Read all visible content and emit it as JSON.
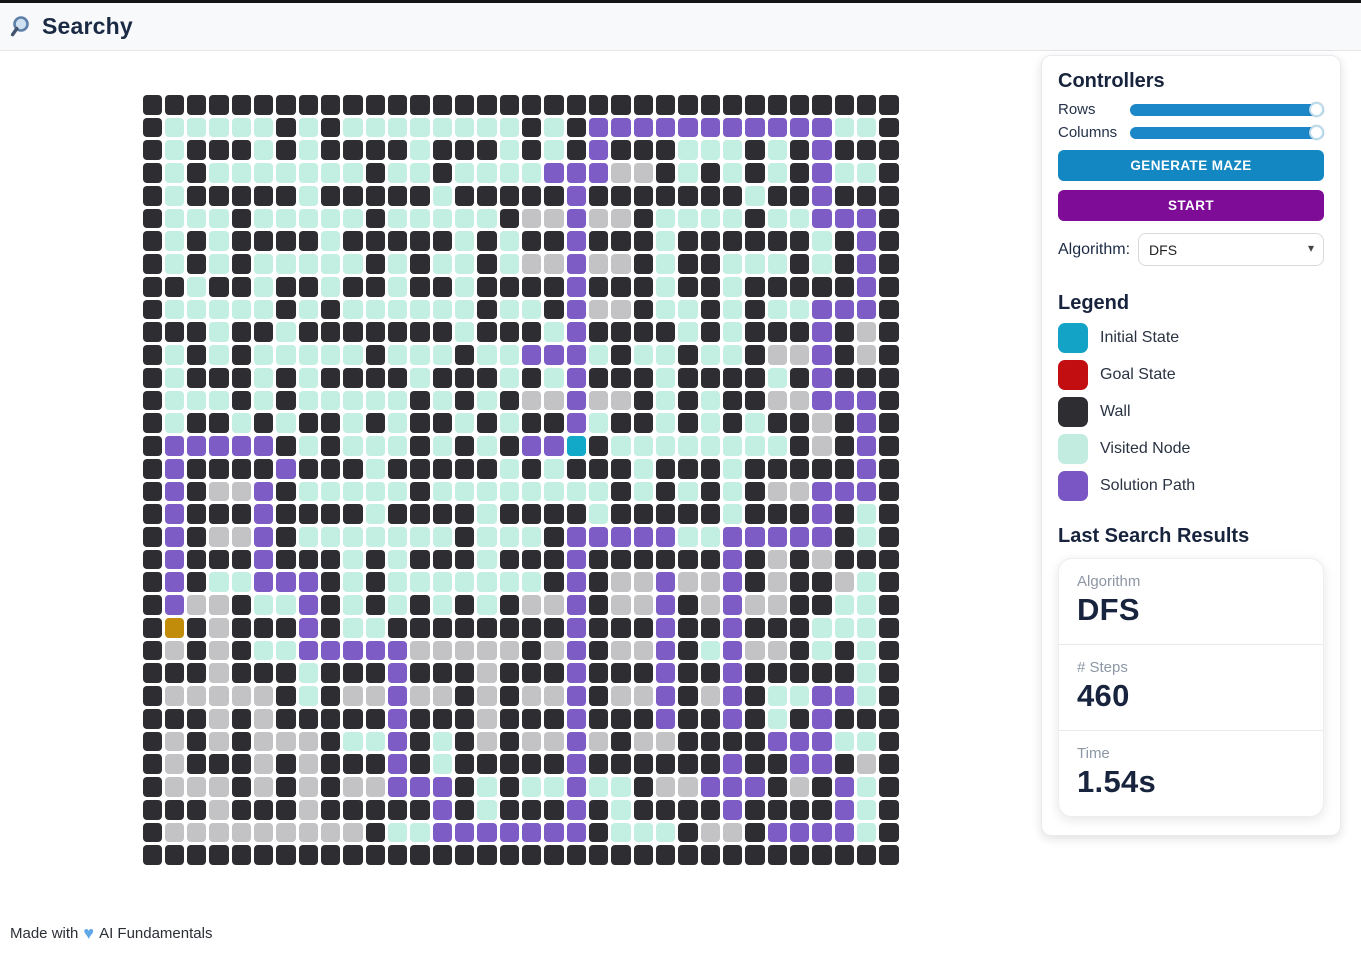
{
  "header": {
    "title": "Searchy",
    "icon": "magnifier"
  },
  "controllers": {
    "title": "Controllers",
    "rows_label": "Rows",
    "columns_label": "Columns",
    "slider_color": "#1b87c9",
    "generate_label": "GENERATE MAZE",
    "start_label": "START",
    "algorithm_label": "Algorithm:",
    "algorithm_value": "DFS"
  },
  "legend": {
    "title": "Legend",
    "items": [
      {
        "label": "Initial State",
        "color": "#12a3c6"
      },
      {
        "label": "Goal State",
        "color": "#c20d11"
      },
      {
        "label": "Wall",
        "color": "#2e2d32"
      },
      {
        "label": "Visited Node",
        "color": "#c2ece0"
      },
      {
        "label": "Solution Path",
        "color": "#7a56c4"
      }
    ]
  },
  "results": {
    "title": "Last Search Results",
    "stats": [
      {
        "label": "Algorithm",
        "value": "DFS"
      },
      {
        "label": "# Steps",
        "value": "460"
      },
      {
        "label": "Time",
        "value": "1.54s"
      }
    ]
  },
  "maze": {
    "rows": 34,
    "cols": 34,
    "cell_colors": {
      "W": "#2e2d32",
      "V": "#c2efe2",
      "U": "#c3c3c5",
      "P": "#7d5cc6",
      "I": "#12a8c8",
      "G": "#c08c0a"
    },
    "cell_names": {
      "W": "wall-cell",
      "V": "visited-cell",
      "U": "free-cell",
      "P": "solution-path-cell",
      "I": "initial-state-cell",
      "G": "goal-state-cell"
    },
    "grid": [
      "WWWWWWWWWWWWWWWWWWWWWWWWWWWWWWWWWW",
      "WVVVVVWVWVVVVVVVVWVWPPPPPPPPPPPVVW",
      "WVWWWVWVWWWWVWWWVWVWPWWWVVVWVWPWWW",
      "WVWVVVVVVVWVVWVVVVPPPUUWVWVWVWPVVW",
      "WVWWWWWVWWWWWVWWWWWPWWWWWWWVWWPWWW",
      "WVVVWVVVVVWVVVVVWUUPUUWVVVVWVVPPPW",
      "WVWVWWWWVWWWWWVWVWWPWWWVWWWWWWVWPW",
      "WVWVWVVVVVWVWVVWVUUPUUWVWWVVVWVWPW",
      "WWVWWVWWVWWVWWVWWWWPWWWVWWVWWWWWPW",
      "WVVVVVWVWVVVVVVWVVWPUUWVVWVWVVPPPW",
      "WWWVWWVWWWWWWWVWWWVPWWWWVWVWWWPWUW",
      "WVWVWVVVVVWVVVWVVPPPVWVVWVVWUUPWUW",
      "WVWWWVWVWWWWVWWWVWVPWWWVWWWWVWPWWW",
      "WVVVWVWVVVVVWVWVWUUPUUWVWVWWUUPPPW",
      "WVWWVWVWWVWVWWVWVWWPVWWVWVWVWWUWPW",
      "WPPPPPWVWVVVWVWVWPPIWVVVVVVVVWUWPW",
      "WPWWWWPWWWVWWWWWVWVWWWVWWWVWWWWWPW",
      "WPWUUPWVVVVVWVVVVVVVVWVWVWVWUUPPPW",
      "WPWWWPWWWWVWWWWVWWWWVWWWWWVWWWPWVW",
      "WPWUUPWVVVVVVVWVVVWPPPPPVVPPPPPWVW",
      "WPWWWPWWWVWVWWWVWWWPWWWWWWPWUWUWWW",
      "WPWVVPPPWVWVVVVVVVWPWUUPUUPWUWWUVW",
      "WPUUWVVPWVWVWVWVWUUPWUUPWUPUUWWVVW",
      "WGWUWWWPWVVWWWWWWWWPWWWPWWPWWWVVVW",
      "WUWUWVVPPPPPUUUUUWUPWUUPWVPUUWVWVW",
      "WWWUWWWVWWWPWWWUWWWPWWWPWWPWWWWWVW",
      "WUUUUUWVWUUPUUWUWUUPWUUPWUPWVVPPVW",
      "WWWUWUWWWWWPWWWUWWWPWWWPWWPWVWPWWW",
      "WUWUWUUUWVVPWVWUWUUPUWUUWWWWPPPVVW",
      "WUWWWUWUWWWPWVWWWWWPWWWWWWPWWPPWUW",
      "WUUUWUWUWUUPPPWVWVVPVVWUUPPPWUWPVW",
      "WWWUWWWUWWWWWPWVWWWPWVWWWWPWWWWPVW",
      "WUUUUUUUUUWVVPPPPPPPWVVVWUUWPPPPVW",
      "WWWWWWWWWWWWWWWWWWWWWWWWWWWWWWWWWW"
    ]
  },
  "footer": {
    "prefix": "Made with",
    "heart": "♥",
    "suffix": "AI Fundamentals"
  }
}
